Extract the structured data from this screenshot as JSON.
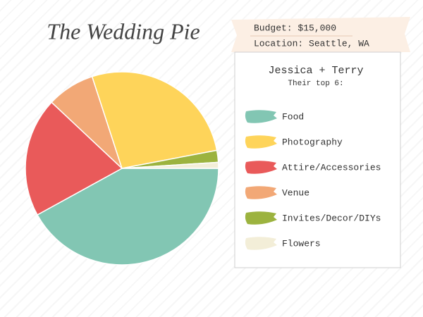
{
  "chart_data": {
    "type": "pie",
    "title": "The Wedding Pie",
    "budget": "Budget: $15,000",
    "location": "Location: Seattle, WA",
    "couple": "Jessica + Terry",
    "subtitle": "Their top 6:",
    "categories": [
      "Food",
      "Photography",
      "Attire/Accessories",
      "Venue",
      "Invites/Decor/DIYs",
      "Flowers"
    ],
    "values": [
      42,
      27,
      20,
      8,
      2,
      1
    ],
    "colors": [
      "#82c6b3",
      "#fed45a",
      "#e95a5a",
      "#f2a876",
      "#9cb33f",
      "#f3eed8"
    ],
    "slice_order": [
      0,
      2,
      3,
      1,
      4,
      5
    ]
  }
}
